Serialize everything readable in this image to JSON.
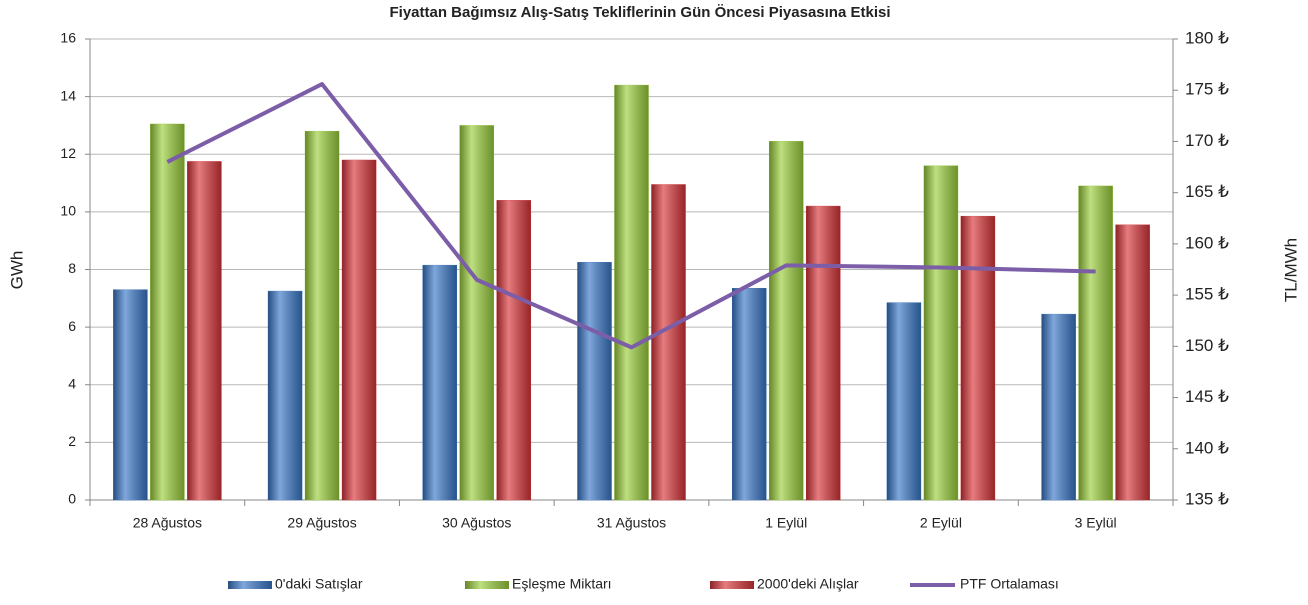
{
  "chart_data": {
    "type": "bar",
    "title": "Fiyattan Bağımsız Alış-Satış Tekliflerinin Gün Öncesi Piyasasına Etkisi",
    "categories": [
      "28 Ağustos",
      "29 Ağustos",
      "30 Ağustos",
      "31 Ağustos",
      "1 Eylül",
      "2 Eylül",
      "3 Eylül"
    ],
    "series": [
      {
        "name": "0'daki Satışlar",
        "color": "#3a78c8",
        "values": [
          7.3,
          7.25,
          8.15,
          8.25,
          7.35,
          6.85,
          6.45
        ]
      },
      {
        "name": "Eşleşme Miktarı",
        "color": "#9bcf3c",
        "values": [
          13.05,
          12.8,
          13.0,
          14.4,
          12.45,
          11.6,
          10.9
        ]
      },
      {
        "name": "2000'deki Alışlar",
        "color": "#d9363a",
        "values": [
          11.75,
          11.8,
          10.4,
          10.95,
          10.2,
          9.85,
          9.55
        ]
      },
      {
        "name": "PTF Ortalaması",
        "color": "#7b5ea7",
        "type": "line",
        "axis": "y2",
        "values": [
          168.0,
          175.6,
          156.5,
          149.9,
          157.9,
          157.7,
          157.3
        ]
      }
    ],
    "ylabel": "GWh",
    "y2label": "TL/MWh",
    "ylim": [
      0,
      16
    ],
    "yticks": [
      0,
      2,
      4,
      6,
      8,
      10,
      12,
      14,
      16
    ],
    "y2lim": [
      135,
      180
    ],
    "y2ticks": [
      {
        "value": 135,
        "label": "135 ₺"
      },
      {
        "value": 140,
        "label": "140 ₺"
      },
      {
        "value": 145,
        "label": "145 ₺"
      },
      {
        "value": 150,
        "label": "150 ₺"
      },
      {
        "value": 155,
        "label": "155 ₺"
      },
      {
        "value": 160,
        "label": "160 ₺"
      },
      {
        "value": 165,
        "label": "165 ₺"
      },
      {
        "value": 170,
        "label": "170 ₺"
      },
      {
        "value": 175,
        "label": "175 ₺"
      },
      {
        "value": 180,
        "label": "180 ₺"
      }
    ],
    "grid": true,
    "legend": "bottom"
  }
}
